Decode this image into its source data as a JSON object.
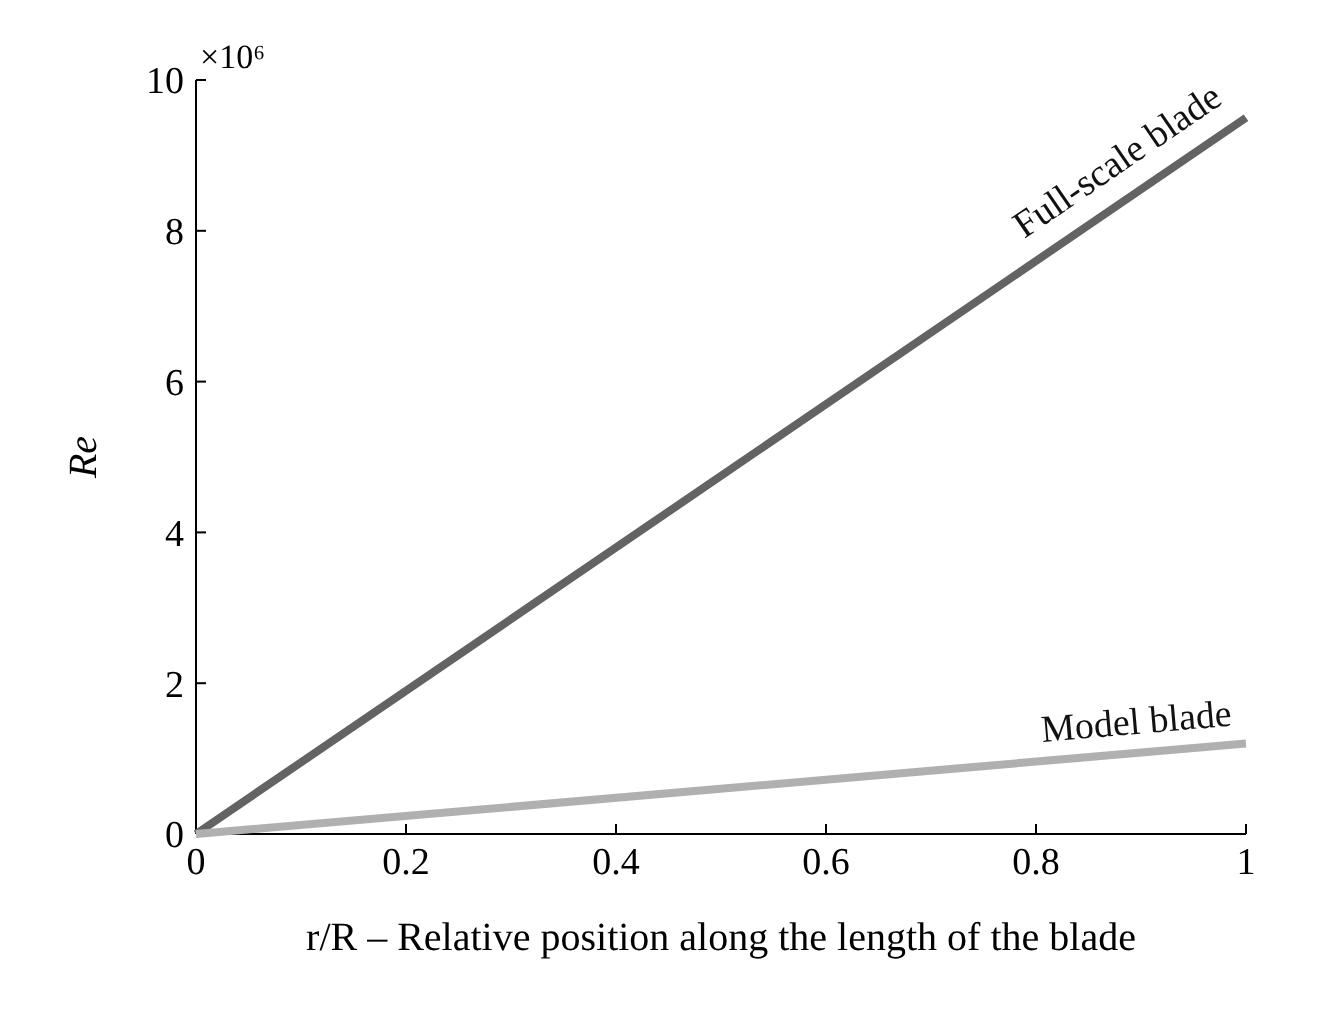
{
  "chart_data": {
    "type": "line",
    "xlabel": "r/R – Relative position along the length of the blade",
    "ylabel": "Re",
    "annotations": [
      "×10⁶"
    ],
    "x": [
      0,
      1
    ],
    "series": [
      {
        "name": "Full-scale blade",
        "color": "#636363",
        "values": [
          0,
          9.5
        ]
      },
      {
        "name": "Model blade",
        "color": "#b0b0b0",
        "values": [
          0,
          1.2
        ]
      }
    ],
    "xlim": [
      0,
      1
    ],
    "xticks": [
      0,
      0.2,
      0.4,
      0.6,
      0.8,
      1
    ],
    "ylim": [
      0,
      10
    ],
    "yticks": [
      0,
      2,
      4,
      6,
      8,
      10
    ],
    "grid": false,
    "marker": "none",
    "line_style": "solid"
  }
}
